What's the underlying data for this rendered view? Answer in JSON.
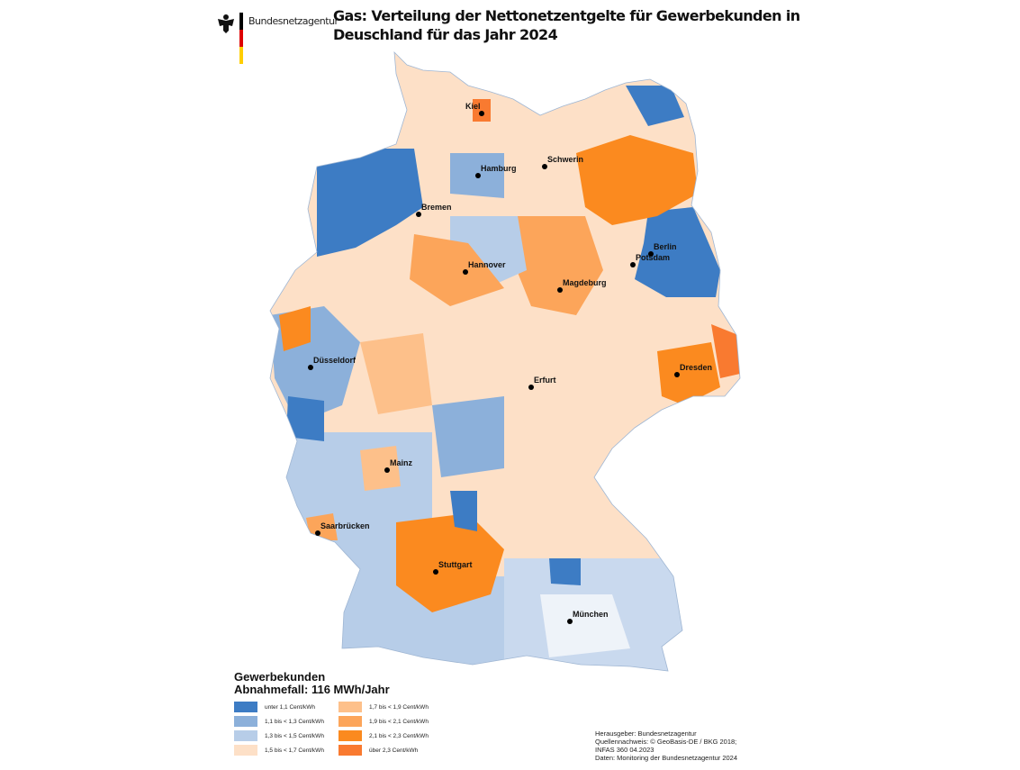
{
  "header": {
    "logo_text": "Bundesnetzagentur",
    "title_line1": "Gas: Verteilung der Nettonetzentgelte für Gewerbekunden in",
    "title_line2": "Deuschland für das Jahr 2024"
  },
  "cities": [
    "Kiel",
    "Hamburg",
    "Schwerin",
    "Bremen",
    "Berlin",
    "Potsdam",
    "Hannover",
    "Magdeburg",
    "Düsseldorf",
    "Dresden",
    "Erfurt",
    "Mainz",
    "Saarbrücken",
    "Stuttgart",
    "München"
  ],
  "legend": {
    "title_line1": "Gewerbekunden",
    "title_line2": "Abnahmefall: 116 MWh/Jahr",
    "items": [
      {
        "label": "unter 1,1 Cent/kWh",
        "color": "#3d7cc4"
      },
      {
        "label": "1,7 bis < 1,9 Cent/kWh",
        "color": "#fdc08a"
      },
      {
        "label": "1,1 bis < 1,3 Cent/kWh",
        "color": "#8cb0da"
      },
      {
        "label": "1,9 bis < 2,1 Cent/kWh",
        "color": "#fca55a"
      },
      {
        "label": "1,3 bis < 1,5 Cent/kWh",
        "color": "#b7cde8"
      },
      {
        "label": "2,1 bis < 2,3 Cent/kWh",
        "color": "#fb8a1f"
      },
      {
        "label": "1,5 bis < 1,7 Cent/kWh",
        "color": "#fde0c7"
      },
      {
        "label": "über 2,3 Cent/kWh",
        "color": "#f97a30"
      }
    ]
  },
  "credits": [
    "Herausgeber: Bundesnetzagentur",
    "Quellennachweis: © GeoBasis-DE / BKG 2018;",
    "INFAS 360   04.2023",
    "Daten: Monitoring der Bundesnetzagentur 2024"
  ]
}
